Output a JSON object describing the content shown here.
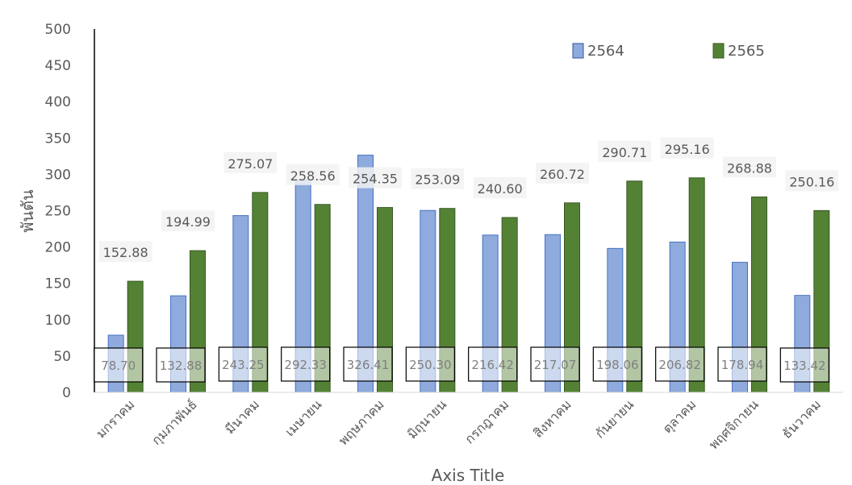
{
  "chart_data": {
    "type": "bar",
    "title": "",
    "xlabel": "Axis Title",
    "ylabel": "พันตัน",
    "ylim": [
      0,
      500
    ],
    "yticks": [
      0,
      50,
      100,
      150,
      200,
      250,
      300,
      350,
      400,
      450,
      500
    ],
    "grid": false,
    "legend_position": "top-right",
    "categories": [
      "มกราคม",
      "กุมภาพันธ์",
      "มีนาคม",
      "เมษายน",
      "พฤษภาคม",
      "มิถุนายน",
      "กรกฎาคม",
      "สิงหาคม",
      "กันยายน",
      "ตุลาคม",
      "พฤศจิกายน",
      "ธันวาคม"
    ],
    "series": [
      {
        "name": "2564",
        "color": "#8faadc",
        "values": [
          78.7,
          132.88,
          243.25,
          292.33,
          326.41,
          250.3,
          216.42,
          217.07,
          198.06,
          206.82,
          178.94,
          133.42
        ],
        "labels": [
          "78.70",
          "132.88",
          "243.25",
          "292.33",
          "326.41",
          "250.30",
          "216.42",
          "217.07",
          "198.06",
          "206.82",
          "178.94",
          "133.42"
        ]
      },
      {
        "name": "2565",
        "color": "#548235",
        "values": [
          152.88,
          194.99,
          275.07,
          258.56,
          254.35,
          253.09,
          240.6,
          260.72,
          290.71,
          295.16,
          268.88,
          250.16
        ],
        "labels": [
          "152.88",
          "194.99",
          "275.07",
          "258.56",
          "254.35",
          "253.09",
          "240.60",
          "260.72",
          "290.71",
          "295.16",
          "268.88",
          "250.16"
        ]
      }
    ]
  }
}
